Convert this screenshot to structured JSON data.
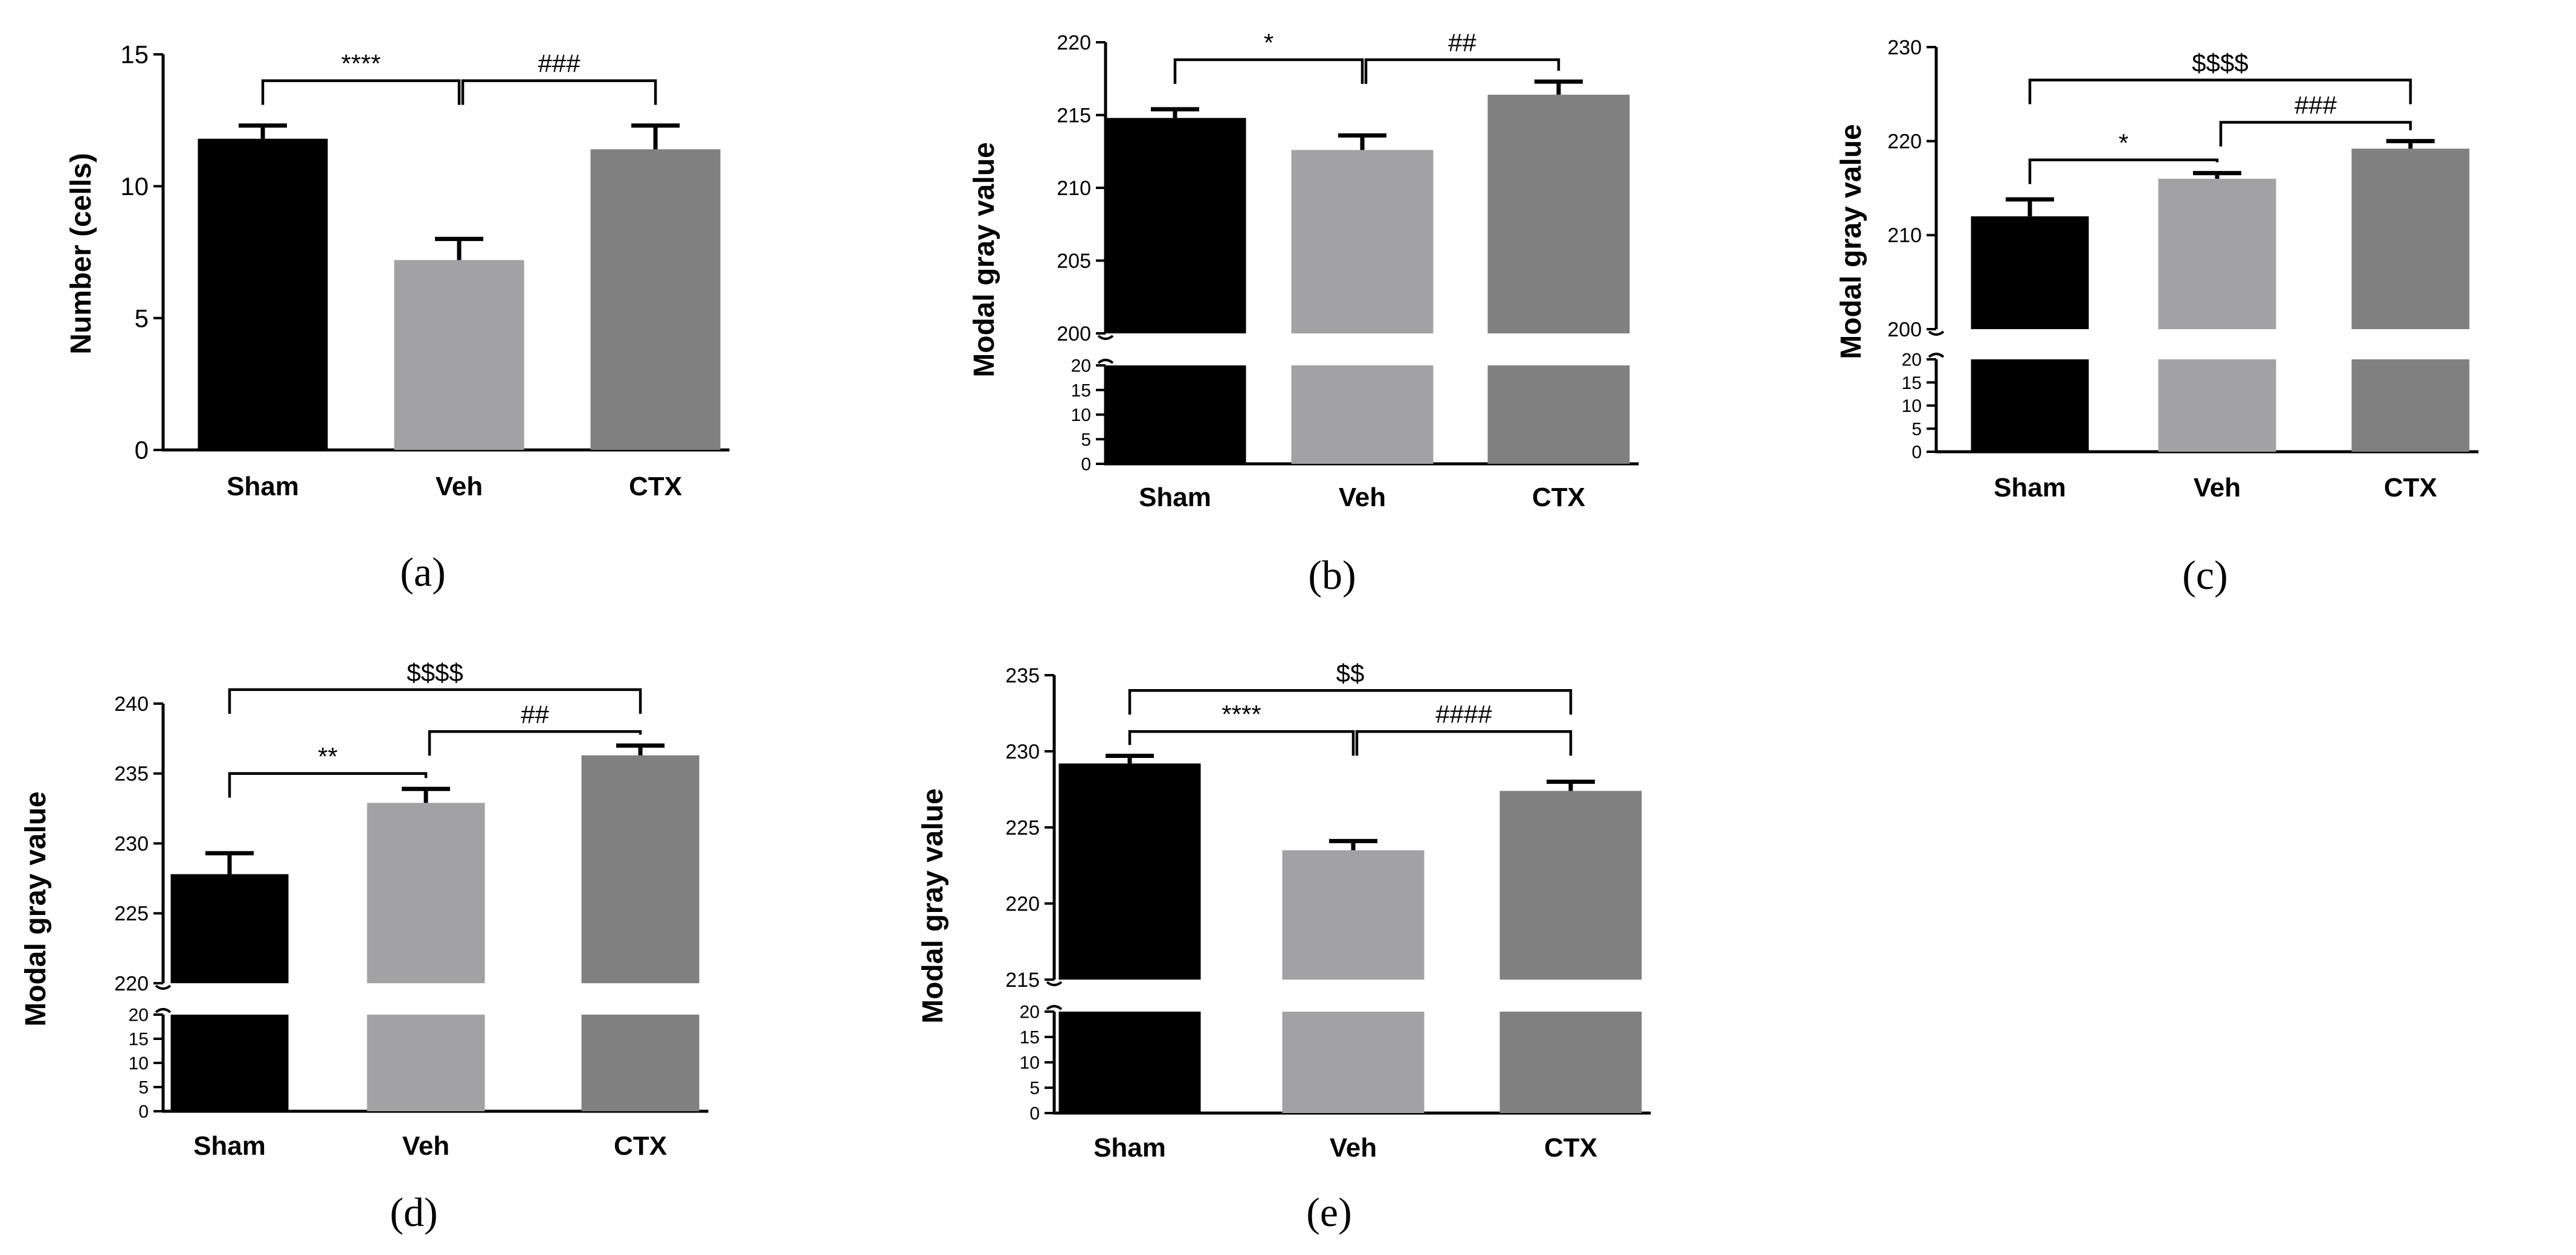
{
  "colors": {
    "Sham": "#000000",
    "Veh": "#a2a2a5",
    "CTX": "#808080"
  },
  "chart_data": [
    {
      "id": "a",
      "type": "bar",
      "panel_label": "(a)",
      "ylabel": "Number (cells)",
      "categories": [
        "Sham",
        "Veh",
        "CTX"
      ],
      "values": [
        11.8,
        7.2,
        11.4
      ],
      "errors": [
        0.5,
        0.8,
        0.9
      ],
      "ylim": [
        0,
        15
      ],
      "yticks": [
        "0",
        "5",
        "10",
        "15"
      ],
      "significance": [
        {
          "from": "Sham",
          "to": "Veh",
          "label": "****",
          "level": 14.0
        },
        {
          "from": "Veh",
          "to": "CTX",
          "label": "###",
          "level": 14.0
        }
      ]
    },
    {
      "id": "b",
      "type": "bar",
      "panel_label": "(b)",
      "ylabel": "Modal gray value",
      "categories": [
        "Sham",
        "Veh",
        "CTX"
      ],
      "values": [
        214.8,
        212.6,
        216.4
      ],
      "errors": [
        0.6,
        1.0,
        0.9
      ],
      "broken_axis": {
        "lower": [
          0,
          20
        ],
        "upper": [
          200,
          220
        ]
      },
      "yticks_lower": [
        "0",
        "5",
        "10",
        "15",
        "20"
      ],
      "yticks_upper": [
        "200",
        "205",
        "210",
        "215",
        "220"
      ],
      "significance": [
        {
          "from": "Sham",
          "to": "Veh",
          "label": "*",
          "level": 218.8
        },
        {
          "from": "Veh",
          "to": "CTX",
          "label": "##",
          "level": 218.8
        }
      ]
    },
    {
      "id": "c",
      "type": "bar",
      "panel_label": "(c)",
      "ylabel": "Modal gray value",
      "categories": [
        "Sham",
        "Veh",
        "CTX"
      ],
      "values": [
        212.0,
        216.0,
        219.2
      ],
      "errors": [
        1.8,
        0.6,
        0.8
      ],
      "broken_axis": {
        "lower": [
          0,
          20
        ],
        "upper": [
          200,
          230
        ]
      },
      "yticks_lower": [
        "0",
        "5",
        "10",
        "15",
        "20"
      ],
      "yticks_upper": [
        "200",
        "210",
        "220",
        "230"
      ],
      "significance": [
        {
          "from": "Sham",
          "to": "Veh",
          "label": "*",
          "level": 218.0
        },
        {
          "from": "Veh",
          "to": "CTX",
          "label": "###",
          "level": 222.0
        },
        {
          "from": "Sham",
          "to": "CTX",
          "label": "$$$$",
          "level": 226.5
        }
      ]
    },
    {
      "id": "d",
      "type": "bar",
      "panel_label": "(d)",
      "ylabel": "Modal gray value",
      "categories": [
        "Sham",
        "Veh",
        "CTX"
      ],
      "values": [
        227.8,
        232.9,
        236.3
      ],
      "errors": [
        1.5,
        1.0,
        0.7
      ],
      "broken_axis": {
        "lower": [
          0,
          20
        ],
        "upper": [
          220,
          240
        ]
      },
      "yticks_lower": [
        "0",
        "5",
        "10",
        "15",
        "20"
      ],
      "yticks_upper": [
        "220",
        "225",
        "230",
        "235",
        "240"
      ],
      "significance": [
        {
          "from": "Sham",
          "to": "Veh",
          "label": "**",
          "level": 235.0
        },
        {
          "from": "Veh",
          "to": "CTX",
          "label": "##",
          "level": 238.0
        },
        {
          "from": "Sham",
          "to": "CTX",
          "label": "$$$$",
          "level": 241.0
        }
      ]
    },
    {
      "id": "e",
      "type": "bar",
      "panel_label": "(e)",
      "ylabel": "Modal gray value",
      "categories": [
        "Sham",
        "Veh",
        "CTX"
      ],
      "values": [
        229.2,
        223.5,
        227.4
      ],
      "errors": [
        0.5,
        0.6,
        0.6
      ],
      "broken_axis": {
        "lower": [
          0,
          20
        ],
        "upper": [
          215,
          235
        ]
      },
      "yticks_lower": [
        "0",
        "5",
        "10",
        "15",
        "20"
      ],
      "yticks_upper": [
        "215",
        "220",
        "225",
        "230",
        "235"
      ],
      "significance": [
        {
          "from": "Sham",
          "to": "Veh",
          "label": "****",
          "level": 231.3
        },
        {
          "from": "Veh",
          "to": "CTX",
          "label": "####",
          "level": 231.3
        },
        {
          "from": "Sham",
          "to": "CTX",
          "label": "$$",
          "level": 234.0
        }
      ]
    }
  ]
}
